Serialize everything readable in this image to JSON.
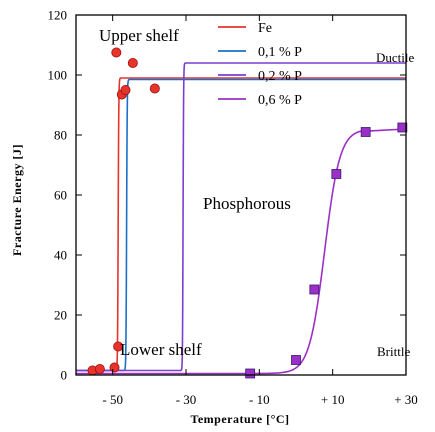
{
  "chart_data": {
    "type": "line",
    "title": "",
    "xlabel": "Temperature [°C]",
    "ylabel": "Fracture Energy [J]",
    "xlim": [
      -60,
      30
    ],
    "ylim": [
      0,
      120
    ],
    "x_ticks": [
      -50,
      -30,
      -10,
      10,
      30
    ],
    "x_tick_labels": [
      "- 50",
      "- 30",
      "- 10",
      "+ 10",
      "+ 30"
    ],
    "y_ticks": [
      0,
      20,
      40,
      60,
      80,
      100,
      120
    ],
    "y_tick_labels": [
      "0",
      "20",
      "40",
      "60",
      "80",
      "100",
      "120"
    ],
    "grid": false,
    "legend_position": "top",
    "annotations": {
      "upper_shelf": "Upper shelf",
      "lower_shelf": "Lower shelf",
      "phosphorous": "Phosphorous",
      "ductile": "Ductile",
      "brittle": "Brittle"
    },
    "series": [
      {
        "name": "Fe",
        "color": "#e8322c",
        "marker": "circle",
        "curve": {
          "lower": 1.5,
          "upper": 99,
          "t0": -48.5,
          "k": 12
        },
        "points": [
          {
            "x": -55.5,
            "y": 1.5
          },
          {
            "x": -53.5,
            "y": 2
          },
          {
            "x": -49.5,
            "y": 2.5
          },
          {
            "x": -48.5,
            "y": 9.5
          },
          {
            "x": -49,
            "y": 107.5
          },
          {
            "x": -47.5,
            "y": 93.5
          },
          {
            "x": -46.5,
            "y": 95
          },
          {
            "x": -44.5,
            "y": 104
          },
          {
            "x": -38.5,
            "y": 95.5
          }
        ]
      },
      {
        "name": "0,1 % P",
        "color": "#1a70c8",
        "marker": "circle",
        "curve": {
          "lower": 1.5,
          "upper": 98.5,
          "t0": -46.2,
          "k": 12
        },
        "points": []
      },
      {
        "name": "0,2 % P",
        "color": "#7a3ed0",
        "marker": "circle",
        "curve": {
          "lower": 1.5,
          "upper": 104,
          "t0": -30.8,
          "k": 14
        },
        "points": []
      },
      {
        "name": "0,6 % P",
        "color": "#9b30c8",
        "marker": "square",
        "curve": {
          "lower": 0.5,
          "upper": 82,
          "t0": 7.8,
          "k": 0.48
        },
        "points": [
          {
            "x": -12.5,
            "y": 0.5
          },
          {
            "x": 0,
            "y": 5
          },
          {
            "x": 5,
            "y": 28.5
          },
          {
            "x": 11,
            "y": 67
          },
          {
            "x": 19,
            "y": 81
          },
          {
            "x": 29,
            "y": 82.5
          }
        ]
      }
    ]
  }
}
